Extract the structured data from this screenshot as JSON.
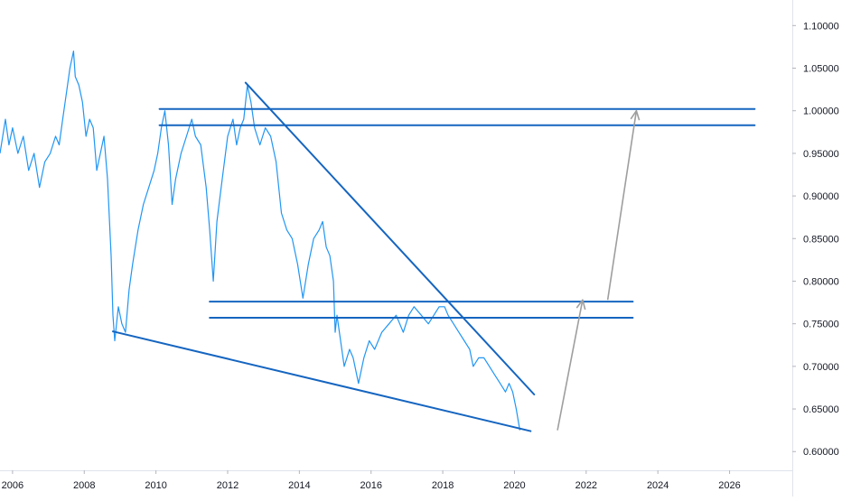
{
  "chart_data": {
    "type": "line",
    "title": "",
    "xlabel": "",
    "ylabel": "",
    "xlim": [
      2005.65,
      2027.75
    ],
    "ylim": [
      0.578,
      1.13
    ],
    "grid": false,
    "x_ticks": [
      {
        "value": 2006,
        "label": "2006"
      },
      {
        "value": 2008,
        "label": "2008"
      },
      {
        "value": 2010,
        "label": "2010"
      },
      {
        "value": 2012,
        "label": "2012"
      },
      {
        "value": 2014,
        "label": "2014"
      },
      {
        "value": 2016,
        "label": "2016"
      },
      {
        "value": 2018,
        "label": "2018"
      },
      {
        "value": 2020,
        "label": "2020"
      },
      {
        "value": 2022,
        "label": "2022"
      },
      {
        "value": 2024,
        "label": "2024"
      },
      {
        "value": 2026,
        "label": "2026"
      }
    ],
    "y_ticks": [
      {
        "value": 0.6,
        "label": "0.60000"
      },
      {
        "value": 0.65,
        "label": "0.65000"
      },
      {
        "value": 0.7,
        "label": "0.70000"
      },
      {
        "value": 0.75,
        "label": "0.75000"
      },
      {
        "value": 0.8,
        "label": "0.80000"
      },
      {
        "value": 0.85,
        "label": "0.85000"
      },
      {
        "value": 0.9,
        "label": "0.90000"
      },
      {
        "value": 0.95,
        "label": "0.95000"
      },
      {
        "value": 1.0,
        "label": "1.00000"
      },
      {
        "value": 1.05,
        "label": "1.05000"
      },
      {
        "value": 1.1,
        "label": "1.10000"
      }
    ],
    "series": [
      {
        "color": "#2196f3",
        "points": [
          [
            2005.65,
            0.95
          ],
          [
            2005.8,
            0.99
          ],
          [
            2005.9,
            0.96
          ],
          [
            2006.0,
            0.98
          ],
          [
            2006.15,
            0.95
          ],
          [
            2006.3,
            0.97
          ],
          [
            2006.45,
            0.93
          ],
          [
            2006.6,
            0.95
          ],
          [
            2006.75,
            0.91
          ],
          [
            2006.9,
            0.94
          ],
          [
            2007.05,
            0.95
          ],
          [
            2007.2,
            0.97
          ],
          [
            2007.3,
            0.96
          ],
          [
            2007.4,
            0.99
          ],
          [
            2007.5,
            1.02
          ],
          [
            2007.6,
            1.05
          ],
          [
            2007.7,
            1.07
          ],
          [
            2007.75,
            1.04
          ],
          [
            2007.85,
            1.03
          ],
          [
            2007.95,
            1.01
          ],
          [
            2008.05,
            0.97
          ],
          [
            2008.15,
            0.99
          ],
          [
            2008.25,
            0.98
          ],
          [
            2008.35,
            0.93
          ],
          [
            2008.45,
            0.95
          ],
          [
            2008.55,
            0.97
          ],
          [
            2008.65,
            0.92
          ],
          [
            2008.75,
            0.83
          ],
          [
            2008.8,
            0.76
          ],
          [
            2008.85,
            0.73
          ],
          [
            2008.95,
            0.77
          ],
          [
            2009.05,
            0.75
          ],
          [
            2009.15,
            0.74
          ],
          [
            2009.25,
            0.79
          ],
          [
            2009.35,
            0.82
          ],
          [
            2009.5,
            0.86
          ],
          [
            2009.65,
            0.89
          ],
          [
            2009.8,
            0.91
          ],
          [
            2009.95,
            0.93
          ],
          [
            2010.05,
            0.95
          ],
          [
            2010.15,
            0.98
          ],
          [
            2010.25,
            1.0
          ],
          [
            2010.35,
            0.96
          ],
          [
            2010.45,
            0.89
          ],
          [
            2010.55,
            0.92
          ],
          [
            2010.7,
            0.95
          ],
          [
            2010.85,
            0.97
          ],
          [
            2011.0,
            0.99
          ],
          [
            2011.1,
            0.97
          ],
          [
            2011.25,
            0.96
          ],
          [
            2011.4,
            0.91
          ],
          [
            2011.5,
            0.86
          ],
          [
            2011.6,
            0.8
          ],
          [
            2011.7,
            0.87
          ],
          [
            2011.85,
            0.92
          ],
          [
            2012.0,
            0.97
          ],
          [
            2012.15,
            0.99
          ],
          [
            2012.25,
            0.96
          ],
          [
            2012.35,
            0.98
          ],
          [
            2012.45,
            0.99
          ],
          [
            2012.55,
            1.03
          ],
          [
            2012.65,
            1.01
          ],
          [
            2012.75,
            0.98
          ],
          [
            2012.9,
            0.96
          ],
          [
            2013.05,
            0.98
          ],
          [
            2013.2,
            0.97
          ],
          [
            2013.35,
            0.94
          ],
          [
            2013.5,
            0.88
          ],
          [
            2013.65,
            0.86
          ],
          [
            2013.8,
            0.85
          ],
          [
            2013.95,
            0.82
          ],
          [
            2014.1,
            0.78
          ],
          [
            2014.25,
            0.82
          ],
          [
            2014.4,
            0.85
          ],
          [
            2014.55,
            0.86
          ],
          [
            2014.65,
            0.87
          ],
          [
            2014.75,
            0.84
          ],
          [
            2014.85,
            0.83
          ],
          [
            2014.95,
            0.8
          ],
          [
            2015.0,
            0.74
          ],
          [
            2015.05,
            0.76
          ],
          [
            2015.15,
            0.73
          ],
          [
            2015.25,
            0.7
          ],
          [
            2015.4,
            0.72
          ],
          [
            2015.5,
            0.71
          ],
          [
            2015.65,
            0.68
          ],
          [
            2015.8,
            0.71
          ],
          [
            2015.95,
            0.73
          ],
          [
            2016.1,
            0.72
          ],
          [
            2016.3,
            0.74
          ],
          [
            2016.5,
            0.75
          ],
          [
            2016.7,
            0.76
          ],
          [
            2016.9,
            0.74
          ],
          [
            2017.05,
            0.76
          ],
          [
            2017.2,
            0.77
          ],
          [
            2017.4,
            0.76
          ],
          [
            2017.6,
            0.75
          ],
          [
            2017.75,
            0.76
          ],
          [
            2017.9,
            0.77
          ],
          [
            2018.05,
            0.77
          ],
          [
            2018.15,
            0.76
          ],
          [
            2018.3,
            0.75
          ],
          [
            2018.45,
            0.74
          ],
          [
            2018.6,
            0.73
          ],
          [
            2018.75,
            0.72
          ],
          [
            2018.85,
            0.7
          ],
          [
            2019.0,
            0.71
          ],
          [
            2019.15,
            0.71
          ],
          [
            2019.3,
            0.7
          ],
          [
            2019.45,
            0.69
          ],
          [
            2019.6,
            0.68
          ],
          [
            2019.75,
            0.67
          ],
          [
            2019.85,
            0.68
          ],
          [
            2019.95,
            0.67
          ],
          [
            2020.05,
            0.65
          ],
          [
            2020.15,
            0.625
          ]
        ]
      }
    ],
    "drawings": {
      "color": "#1565c0",
      "lines": [
        {
          "from": [
            2010.1,
            1.002
          ],
          "to": [
            2026.7,
            1.002
          ]
        },
        {
          "from": [
            2010.1,
            0.983
          ],
          "to": [
            2026.7,
            0.983
          ]
        },
        {
          "from": [
            2011.5,
            0.776
          ],
          "to": [
            2023.3,
            0.776
          ]
        },
        {
          "from": [
            2011.5,
            0.757
          ],
          "to": [
            2023.3,
            0.757
          ]
        },
        {
          "from": [
            2012.5,
            1.033
          ],
          "to": [
            2020.55,
            0.667
          ]
        },
        {
          "from": [
            2008.8,
            0.741
          ],
          "to": [
            2020.45,
            0.624
          ]
        }
      ],
      "arrow_color": "#9e9e9e",
      "arrows": [
        {
          "from": [
            2021.2,
            0.625
          ],
          "to": [
            2021.9,
            0.778
          ]
        },
        {
          "from": [
            2022.6,
            0.778
          ],
          "to": [
            2023.4,
            1.0
          ]
        }
      ]
    }
  }
}
